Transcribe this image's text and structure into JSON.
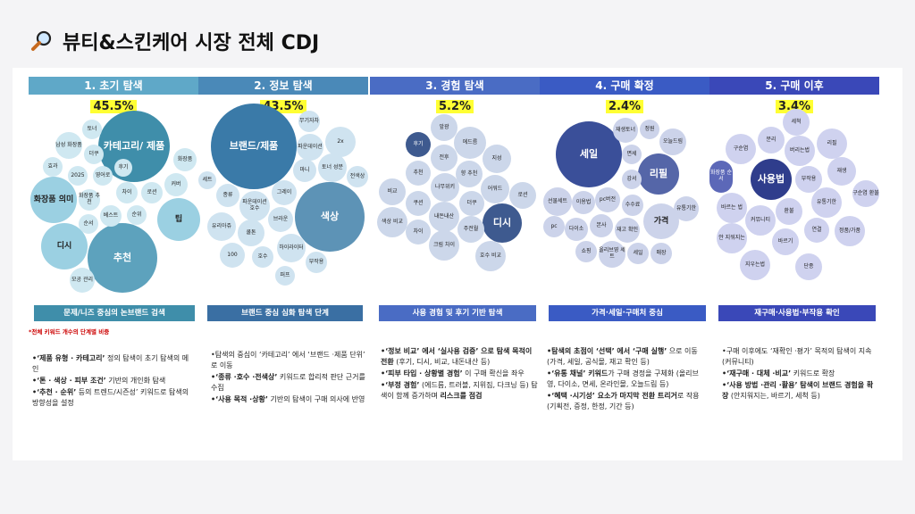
{
  "title": "뷰티&스킨케어 시장 전체 CDJ",
  "colors": {
    "stage1": "#5fa8c8",
    "stage2": "#4a89b8",
    "stage3": "#4a6cc4",
    "stage4": "#3a5bc4",
    "stage5": "#3a48b8",
    "highlight": "#ffff33"
  },
  "note": "*전체 키워드 개수의 단계별 비중",
  "columns": [
    {
      "stage": "1. 초기 탐색",
      "percent": "45.5%",
      "banner": "문제/니즈 중심의 논브랜드 검색",
      "bubbles": [
        "카테고리/ 제품",
        "추천",
        "팁",
        "디시",
        "화장품 의미",
        "토너",
        "남성 화장품",
        "더쿠",
        "효과",
        "2025",
        "영어로",
        "차이",
        "로션",
        "커버",
        "화장품",
        "후기",
        "화장품 추천",
        "베스트",
        "순위",
        "순서",
        "모공 관리"
      ],
      "text": [
        {
          "b": "•‘제품 유형 · 카테고리’",
          "t": " 정의 탐색이 초기 탐색의 메인"
        },
        {
          "b": "•‘톤 · 색상 · 피부 조건’",
          "t": " 기반의 개인화 탐색"
        },
        {
          "b": "•‘추천 · 순위’",
          "t": " 등의 트렌드/시즌성’ 키워드로 탐색의 방향성을 설정"
        }
      ]
    },
    {
      "stage": "2. 정보 탐색",
      "percent": "43.5%",
      "banner": "브랜드 중심 심화 탐색 단계",
      "bubbles": [
        "브랜드/제품",
        "색상",
        "무기자차",
        "2x",
        "파운데이션",
        "마니",
        "토너 성분",
        "전색상",
        "세트",
        "종류",
        "파운데이션 호수",
        "그레이",
        "유리아쥬",
        "쿨톤",
        "브라운",
        "하이라이터",
        "100",
        "호수",
        "부작용",
        "퍼프"
      ],
      "text": [
        {
          "b": "",
          "t": "•탐색의 중심이 ‘카테고리’ 에서 ‘브랜드 ·제품 단위’ 로 이동"
        },
        {
          "b": "•‘종류 ·호수 ·전색상’",
          "t": " 키워드로 합리적 판단 근거를 수집"
        },
        {
          "b": "•‘사용 목적 ·상황’",
          "t": " 기반의 탐색이 구매 의사에 반영"
        }
      ]
    },
    {
      "stage": "3. 경험 탐색",
      "percent": "5.2%",
      "banner": "사용 경험 및 후기 기반 탐색",
      "bubbles": [
        "후기",
        "앞광",
        "에드름",
        "지성",
        "전후",
        "향 추천",
        "어워드",
        "추천",
        "나무위키",
        "로션",
        "비교",
        "쿠션",
        "더쿠",
        "디시",
        "색상 비교",
        "내돈내산",
        "주전월",
        "차이",
        "크림 차이",
        "호수 비교"
      ],
      "text": [
        {
          "b": "•‘정보 비교’ 에서 ‘실사용 검증’ 으로 탐색 목적이 전환",
          "t": " (후기, 디시, 비교, 내돈내산 등)"
        },
        {
          "b": "•‘피부 타입 · 상황별 경험’",
          "t": " 이 구매 확신을 좌우"
        },
        {
          "b": "•‘부정 경험’",
          "t": " (에드름, 트러블, 지위짐, 다크닝 등) 탐색이 함께 증가하며 "
        },
        {
          "b": "리스크를 점검",
          "t": ""
        }
      ]
    },
    {
      "stage": "4. 구매 확정",
      "percent": "2.4%",
      "banner": "가격·세일·구매처 중심",
      "bubbles": [
        "세일",
        "리필",
        "가격",
        "재생토너",
        "정원",
        "오늘드림",
        "면세",
        "선물세트",
        "강서",
        "유통기한",
        "이용법",
        "pc버전",
        "수수료",
        "재고 확인",
        "pc",
        "다이소",
        "본사",
        "쇼핑",
        "올리브영 세트",
        "세일",
        "매장"
      ],
      "text": [
        {
          "b": "•탐색의 초점이 ‘선택’ 에서 ‘구매 실행’",
          "t": " 으로 이동 (가격, 세일, 공식몰, 재고 확인 등)"
        },
        {
          "b": "•‘유통 채널’ 키워드",
          "t": "가 구매 경정을 구체화 (올리브영, 다이소, 면세, 온라인몰, 오늘드림 등)"
        },
        {
          "b": "•‘혜택 ·시기성’ 요소가 마지막 전환 트리거",
          "t": "로 작용 (기획전, 증정, 한정, 기간 등)"
        }
      ]
    },
    {
      "stage": "5. 구매 이후",
      "percent": "3.4%",
      "banner": "재구매·사용법·부작용 확인",
      "bubbles": [
        "사용법",
        "세척",
        "분리",
        "구순염",
        "리필",
        "버리는법",
        "화장품 순서",
        "재생",
        "부작용",
        "바르는 법",
        "구순염 환불",
        "환불",
        "유통기한",
        "커뮤니티",
        "안 지워지는",
        "연결",
        "정품/가품",
        "바르기",
        "지우는법",
        "단종"
      ],
      "text": [
        {
          "b": "",
          "t": "•구매 이후에도 ‘재확인 ·평가’ 목적의 탐색이 지속 (커뮤니티)"
        },
        {
          "b": "•‘재구매 · 대체 ·비교’",
          "t": " 키워드로 확장"
        },
        {
          "b": "•‘사용 방법 ·관리 ·활용’ 탐색이 브랜드 경험을 확장",
          "t": " (안지워지는, 바르기, 세척 등)"
        }
      ]
    }
  ]
}
